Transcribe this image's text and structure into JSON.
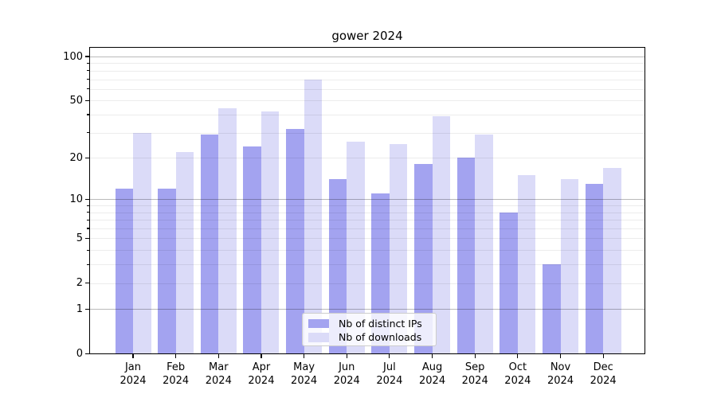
{
  "chart_data": {
    "type": "bar",
    "title": "gower 2024",
    "categories": [
      "Jan",
      "Feb",
      "Mar",
      "Apr",
      "May",
      "Jun",
      "Jul",
      "Aug",
      "Sep",
      "Oct",
      "Nov",
      "Dec"
    ],
    "year_label": "2024",
    "series": [
      {
        "name": "Nb of distinct IPs",
        "color": "#a3a3f0",
        "values": [
          12,
          12,
          29,
          24,
          32,
          14,
          11,
          18,
          20,
          8,
          3,
          13
        ]
      },
      {
        "name": "Nb of downloads",
        "color": "#dbdbf8",
        "values": [
          30,
          22,
          44,
          42,
          70,
          26,
          25,
          39,
          29,
          15,
          14,
          17
        ]
      }
    ],
    "xlabel": "",
    "ylabel": "",
    "yscale": "log1p",
    "ylim": [
      0,
      115
    ],
    "y_labeled_ticks": [
      0,
      1,
      2,
      5,
      10,
      20,
      50,
      100
    ],
    "y_major_gridlines": [
      1,
      10,
      100
    ],
    "y_minor_gridlines": [
      2,
      3,
      4,
      5,
      6,
      7,
      8,
      9,
      20,
      30,
      40,
      50,
      60,
      70,
      80,
      90
    ],
    "y_minor_tickmarks": [
      3,
      4,
      6,
      7,
      8,
      9,
      30,
      40,
      60,
      70,
      80,
      90
    ],
    "grid": true,
    "legend_position": "lower center",
    "background_color": "#ffffff",
    "axis_color": "#000000"
  }
}
